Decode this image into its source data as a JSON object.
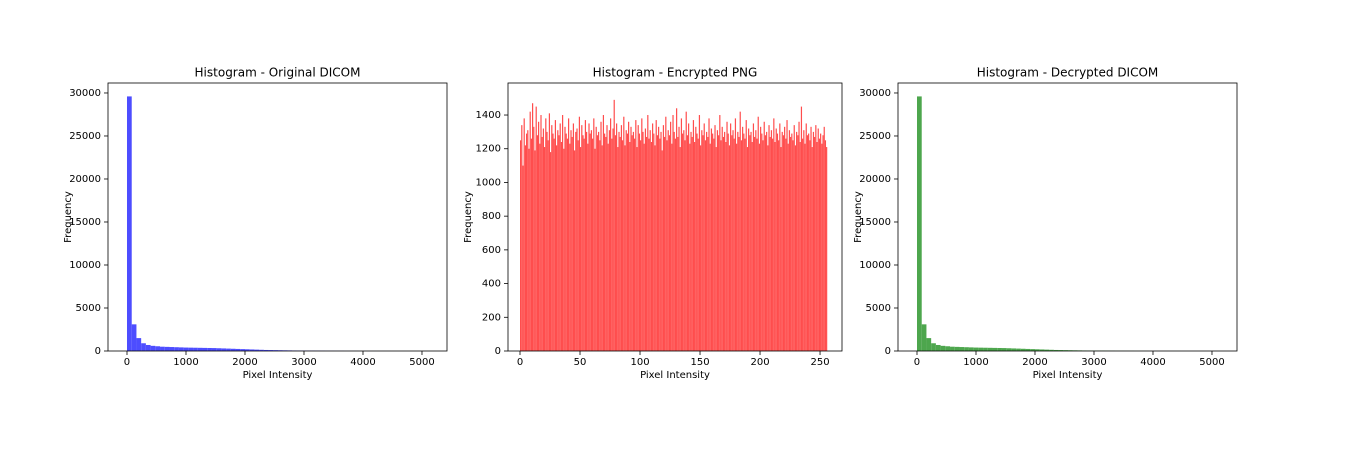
{
  "chart_data": [
    {
      "type": "histogram",
      "title": "Histogram - Original DICOM",
      "xlabel": "Pixel Intensity",
      "ylabel": "Frequency",
      "color": "#4d4dff",
      "bins": [
        0,
        80,
        160,
        240,
        320,
        400,
        480,
        560,
        640,
        720,
        800,
        880,
        960,
        1040,
        1120,
        1200,
        1280,
        1360,
        1440,
        1520,
        1600,
        1680,
        1760,
        1840,
        1920,
        2000,
        2080,
        2160,
        2240,
        2320,
        2400,
        2480,
        2560,
        2640,
        2720,
        2800,
        2880,
        2960,
        3040,
        3120,
        3200,
        3280,
        3360,
        3440,
        3520,
        3600,
        3680,
        3760,
        3840,
        3920,
        4000,
        4080,
        4160,
        4240,
        4320,
        4400,
        4480,
        4560,
        4640,
        4720,
        4800,
        4880,
        4960,
        5040,
        5120,
        5200
      ],
      "counts": [
        29600,
        3100,
        1500,
        900,
        700,
        600,
        550,
        500,
        480,
        460,
        440,
        420,
        400,
        390,
        380,
        370,
        360,
        350,
        340,
        320,
        300,
        280,
        260,
        240,
        220,
        200,
        180,
        160,
        140,
        120,
        110,
        100,
        90,
        80,
        70,
        60,
        55,
        50,
        45,
        40,
        35,
        30,
        25,
        20,
        18,
        15,
        12,
        10,
        8,
        6,
        5,
        4,
        3,
        3,
        2,
        2,
        1,
        1,
        1,
        1,
        0,
        0,
        0,
        0,
        1
      ],
      "xlim": [
        -322,
        5424
      ],
      "ylim": [
        0,
        31160
      ],
      "xticks": [
        0,
        1000,
        2000,
        3000,
        4000,
        5000
      ],
      "yticks": [
        0,
        5000,
        10000,
        15000,
        20000,
        25000,
        30000
      ]
    },
    {
      "type": "histogram",
      "title": "Histogram - Encrypted PNG",
      "xlabel": "Pixel Intensity",
      "ylabel": "Frequency",
      "color": "#ff4d4d",
      "bins": [
        0,
        1,
        2,
        3,
        4,
        5,
        6,
        7,
        8,
        9,
        10,
        11,
        12,
        13,
        14,
        15,
        16,
        17,
        18,
        19,
        20,
        21,
        22,
        23,
        24,
        25,
        26,
        27,
        28,
        29,
        30,
        31,
        32,
        33,
        34,
        35,
        36,
        37,
        38,
        39,
        40,
        41,
        42,
        43,
        44,
        45,
        46,
        47,
        48,
        49,
        50,
        51,
        52,
        53,
        54,
        55,
        56,
        57,
        58,
        59,
        60,
        61,
        62,
        63,
        64,
        65,
        66,
        67,
        68,
        69,
        70,
        71,
        72,
        73,
        74,
        75,
        76,
        77,
        78,
        79,
        80,
        81,
        82,
        83,
        84,
        85,
        86,
        87,
        88,
        89,
        90,
        91,
        92,
        93,
        94,
        95,
        96,
        97,
        98,
        99,
        100,
        101,
        102,
        103,
        104,
        105,
        106,
        107,
        108,
        109,
        110,
        111,
        112,
        113,
        114,
        115,
        116,
        117,
        118,
        119,
        120,
        121,
        122,
        123,
        124,
        125,
        126,
        127,
        128,
        129,
        130,
        131,
        132,
        133,
        134,
        135,
        136,
        137,
        138,
        139,
        140,
        141,
        142,
        143,
        144,
        145,
        146,
        147,
        148,
        149,
        150,
        151,
        152,
        153,
        154,
        155,
        156,
        157,
        158,
        159,
        160,
        161,
        162,
        163,
        164,
        165,
        166,
        167,
        168,
        169,
        170,
        171,
        172,
        173,
        174,
        175,
        176,
        177,
        178,
        179,
        180,
        181,
        182,
        183,
        184,
        185,
        186,
        187,
        188,
        189,
        190,
        191,
        192,
        193,
        194,
        195,
        196,
        197,
        198,
        199,
        200,
        201,
        202,
        203,
        204,
        205,
        206,
        207,
        208,
        209,
        210,
        211,
        212,
        213,
        214,
        215,
        216,
        217,
        218,
        219,
        220,
        221,
        222,
        223,
        224,
        225,
        226,
        227,
        228,
        229,
        230,
        231,
        232,
        233,
        234,
        235,
        236,
        237,
        238,
        239,
        240,
        241,
        242,
        243,
        244,
        245,
        246,
        247,
        248,
        249,
        250,
        251,
        252,
        253,
        254,
        255,
        256
      ],
      "counts": [
        1250,
        1340,
        1100,
        1380,
        1220,
        1290,
        1310,
        1200,
        1420,
        1260,
        1470,
        1330,
        1190,
        1450,
        1280,
        1360,
        1230,
        1400,
        1270,
        1320,
        1210,
        1380,
        1300,
        1250,
        1410,
        1180,
        1340,
        1290,
        1260,
        1370,
        1220,
        1310,
        1280,
        1350,
        1240,
        1400,
        1200,
        1330,
        1290,
        1260,
        1380,
        1230,
        1310,
        1270,
        1350,
        1190,
        1300,
        1320,
        1250,
        1390,
        1210,
        1340,
        1280,
        1260,
        1370,
        1300,
        1230,
        1350,
        1290,
        1310,
        1260,
        1380,
        1200,
        1330,
        1280,
        1300,
        1250,
        1360,
        1220,
        1400,
        1290,
        1270,
        1340,
        1230,
        1310,
        1380,
        1260,
        1320,
        1490,
        1280,
        1350,
        1210,
        1300,
        1270,
        1340,
        1250,
        1390,
        1220,
        1310,
        1290,
        1360,
        1240,
        1330,
        1280,
        1300,
        1260,
        1370,
        1210,
        1340,
        1290,
        1250,
        1380,
        1300,
        1230,
        1320,
        1270,
        1400,
        1260,
        1310,
        1240,
        1350,
        1290,
        1220,
        1370,
        1280,
        1330,
        1260,
        1300,
        1190,
        1340,
        1270,
        1390,
        1250,
        1310,
        1280,
        1360,
        1230,
        1400,
        1300,
        1260,
        1440,
        1270,
        1330,
        1210,
        1380,
        1290,
        1310,
        1250,
        1420,
        1280,
        1350,
        1230,
        1300,
        1270,
        1370,
        1240,
        1330,
        1290,
        1260,
        1400,
        1220,
        1310,
        1280,
        1350,
        1250,
        1300,
        1270,
        1380,
        1230,
        1320,
        1290,
        1260,
        1340,
        1210,
        1310,
        1280,
        1400,
        1250,
        1330,
        1270,
        1300,
        1240,
        1360,
        1290,
        1220,
        1350,
        1280,
        1310,
        1260,
        1380,
        1230,
        1300,
        1270,
        1420,
        1250,
        1330,
        1290,
        1260,
        1370,
        1210,
        1320,
        1280,
        1300,
        1240,
        1350,
        1270,
        1310,
        1260,
        1390,
        1230,
        1330,
        1290,
        1250,
        1360,
        1280,
        1300,
        1220,
        1340,
        1270,
        1310,
        1260,
        1380,
        1240,
        1320,
        1290,
        1250,
        1350,
        1210,
        1300,
        1280,
        1330,
        1260,
        1370,
        1230,
        1310,
        1270,
        1290,
        1250,
        1340,
        1220,
        1300,
        1280,
        1360,
        1240,
        1450,
        1260,
        1310,
        1230,
        1350,
        1280,
        1290,
        1250,
        1330,
        1210,
        1300,
        1270,
        1340,
        1240,
        1320,
        1260,
        1290,
        1230,
        1280,
        1330,
        1250,
        1210,
        1300
      ],
      "xlim": [
        -10,
        268.3
      ],
      "ylim": [
        0,
        1590
      ],
      "xticks": [
        0,
        50,
        100,
        150,
        200,
        250
      ],
      "yticks": [
        0,
        200,
        400,
        600,
        800,
        1000,
        1200,
        1400
      ]
    },
    {
      "type": "histogram",
      "title": "Histogram - Decrypted DICOM",
      "xlabel": "Pixel Intensity",
      "ylabel": "Frequency",
      "color": "#4da64d",
      "bins": [
        0,
        80,
        160,
        240,
        320,
        400,
        480,
        560,
        640,
        720,
        800,
        880,
        960,
        1040,
        1120,
        1200,
        1280,
        1360,
        1440,
        1520,
        1600,
        1680,
        1760,
        1840,
        1920,
        2000,
        2080,
        2160,
        2240,
        2320,
        2400,
        2480,
        2560,
        2640,
        2720,
        2800,
        2880,
        2960,
        3040,
        3120,
        3200,
        3280,
        3360,
        3440,
        3520,
        3600,
        3680,
        3760,
        3840,
        3920,
        4000,
        4080,
        4160,
        4240,
        4320,
        4400,
        4480,
        4560,
        4640,
        4720,
        4800,
        4880,
        4960,
        5040,
        5120,
        5200
      ],
      "counts": [
        29600,
        3100,
        1500,
        900,
        700,
        600,
        550,
        500,
        480,
        460,
        440,
        420,
        400,
        390,
        380,
        370,
        360,
        350,
        340,
        320,
        300,
        280,
        260,
        240,
        220,
        200,
        180,
        160,
        140,
        120,
        110,
        100,
        90,
        80,
        70,
        60,
        55,
        50,
        45,
        40,
        35,
        30,
        25,
        20,
        18,
        15,
        12,
        10,
        8,
        6,
        5,
        4,
        3,
        3,
        2,
        2,
        1,
        1,
        1,
        1,
        0,
        0,
        0,
        0,
        1
      ],
      "xlim": [
        -322,
        5424
      ],
      "ylim": [
        0,
        31160
      ],
      "xticks": [
        0,
        1000,
        2000,
        3000,
        4000,
        5000
      ],
      "yticks": [
        0,
        5000,
        10000,
        15000,
        20000,
        25000,
        30000
      ]
    }
  ]
}
